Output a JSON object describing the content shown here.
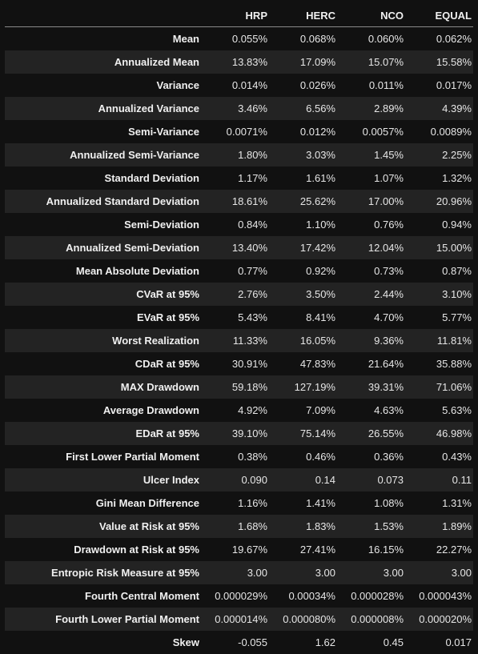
{
  "table": {
    "columns": [
      "HRP",
      "HERC",
      "NCO",
      "EQUAL"
    ],
    "rows": [
      {
        "label": "Mean",
        "values": [
          "0.055%",
          "0.068%",
          "0.060%",
          "0.062%"
        ]
      },
      {
        "label": "Annualized Mean",
        "values": [
          "13.83%",
          "17.09%",
          "15.07%",
          "15.58%"
        ]
      },
      {
        "label": "Variance",
        "values": [
          "0.014%",
          "0.026%",
          "0.011%",
          "0.017%"
        ]
      },
      {
        "label": "Annualized Variance",
        "values": [
          "3.46%",
          "6.56%",
          "2.89%",
          "4.39%"
        ]
      },
      {
        "label": "Semi-Variance",
        "values": [
          "0.0071%",
          "0.012%",
          "0.0057%",
          "0.0089%"
        ]
      },
      {
        "label": "Annualized Semi-Variance",
        "values": [
          "1.80%",
          "3.03%",
          "1.45%",
          "2.25%"
        ]
      },
      {
        "label": "Standard Deviation",
        "values": [
          "1.17%",
          "1.61%",
          "1.07%",
          "1.32%"
        ]
      },
      {
        "label": "Annualized Standard Deviation",
        "values": [
          "18.61%",
          "25.62%",
          "17.00%",
          "20.96%"
        ]
      },
      {
        "label": "Semi-Deviation",
        "values": [
          "0.84%",
          "1.10%",
          "0.76%",
          "0.94%"
        ]
      },
      {
        "label": "Annualized Semi-Deviation",
        "values": [
          "13.40%",
          "17.42%",
          "12.04%",
          "15.00%"
        ]
      },
      {
        "label": "Mean Absolute Deviation",
        "values": [
          "0.77%",
          "0.92%",
          "0.73%",
          "0.87%"
        ]
      },
      {
        "label": "CVaR at 95%",
        "values": [
          "2.76%",
          "3.50%",
          "2.44%",
          "3.10%"
        ]
      },
      {
        "label": "EVaR at 95%",
        "values": [
          "5.43%",
          "8.41%",
          "4.70%",
          "5.77%"
        ]
      },
      {
        "label": "Worst Realization",
        "values": [
          "11.33%",
          "16.05%",
          "9.36%",
          "11.81%"
        ]
      },
      {
        "label": "CDaR at 95%",
        "values": [
          "30.91%",
          "47.83%",
          "21.64%",
          "35.88%"
        ]
      },
      {
        "label": "MAX Drawdown",
        "values": [
          "59.18%",
          "127.19%",
          "39.31%",
          "71.06%"
        ]
      },
      {
        "label": "Average Drawdown",
        "values": [
          "4.92%",
          "7.09%",
          "4.63%",
          "5.63%"
        ]
      },
      {
        "label": "EDaR at 95%",
        "values": [
          "39.10%",
          "75.14%",
          "26.55%",
          "46.98%"
        ]
      },
      {
        "label": "First Lower Partial Moment",
        "values": [
          "0.38%",
          "0.46%",
          "0.36%",
          "0.43%"
        ]
      },
      {
        "label": "Ulcer Index",
        "values": [
          "0.090",
          "0.14",
          "0.073",
          "0.11"
        ]
      },
      {
        "label": "Gini Mean Difference",
        "values": [
          "1.16%",
          "1.41%",
          "1.08%",
          "1.31%"
        ]
      },
      {
        "label": "Value at Risk at 95%",
        "values": [
          "1.68%",
          "1.83%",
          "1.53%",
          "1.89%"
        ]
      },
      {
        "label": "Drawdown at Risk at 95%",
        "values": [
          "19.67%",
          "27.41%",
          "16.15%",
          "22.27%"
        ]
      },
      {
        "label": "Entropic Risk Measure at 95%",
        "values": [
          "3.00",
          "3.00",
          "3.00",
          "3.00"
        ]
      },
      {
        "label": "Fourth Central Moment",
        "values": [
          "0.000029%",
          "0.00034%",
          "0.000028%",
          "0.000043%"
        ]
      },
      {
        "label": "Fourth Lower Partial Moment",
        "values": [
          "0.000014%",
          "0.000080%",
          "0.000008%",
          "0.000020%"
        ]
      },
      {
        "label": "Skew",
        "values": [
          "-0.055",
          "1.62",
          "0.45",
          "0.017"
        ]
      }
    ]
  },
  "colors": {
    "background": "#111111",
    "stripe": "#232323",
    "text": "#e6e6e6",
    "rule": "#8a8a8a"
  }
}
